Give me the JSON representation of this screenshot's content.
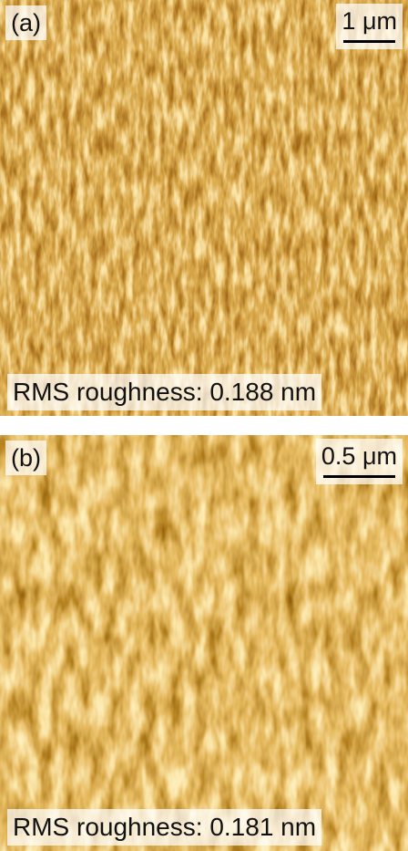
{
  "panels": [
    {
      "label": "(a)",
      "scale_bar": "1 μm",
      "caption": "RMS roughness: 0.188 nm"
    },
    {
      "label": "(b)",
      "scale_bar": "0.5 μm",
      "caption": "RMS roughness: 0.181 nm"
    }
  ]
}
